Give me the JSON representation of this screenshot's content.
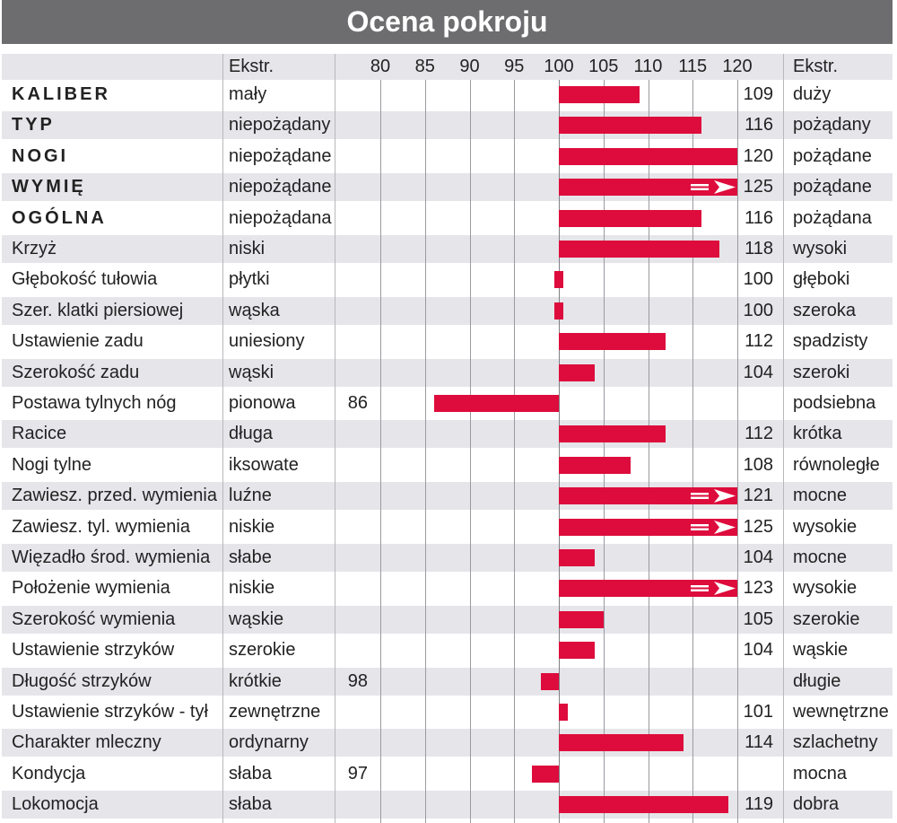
{
  "title": "Ocena pokroju",
  "header": {
    "low_label": "Ekstr.",
    "high_label": "Ekstr."
  },
  "chart_data": {
    "type": "bar",
    "axis": {
      "ticks": [
        "80",
        "85",
        "90",
        "95",
        "100",
        "105",
        "110",
        "115",
        "120"
      ],
      "min": 80,
      "max": 120,
      "base": 100
    },
    "rows": [
      {
        "trait": "KALIBER",
        "bold": true,
        "low": "mały",
        "high": "duży",
        "value": 109,
        "label": "109",
        "side": "right"
      },
      {
        "trait": "TYP",
        "bold": true,
        "low": "niepożądany",
        "high": "pożądany",
        "value": 116,
        "label": "116",
        "side": "right"
      },
      {
        "trait": "NOGI",
        "bold": true,
        "low": "niepożądane",
        "high": "pożądane",
        "value": 120,
        "label": "120",
        "side": "right"
      },
      {
        "trait": "WYMIĘ",
        "bold": true,
        "low": "niepożądane",
        "high": "pożądane",
        "value": 125,
        "label": "125",
        "side": "right",
        "overflow": true
      },
      {
        "trait": "OGÓLNA",
        "bold": true,
        "low": "niepożądana",
        "high": "pożądana",
        "value": 116,
        "label": "116",
        "side": "right"
      },
      {
        "trait": "Krzyż",
        "bold": false,
        "low": "niski",
        "high": "wysoki",
        "value": 118,
        "label": "118",
        "side": "right"
      },
      {
        "trait": "Głębokość tułowia",
        "bold": false,
        "low": "płytki",
        "high": "głęboki",
        "value": 100,
        "label": "100",
        "side": "right"
      },
      {
        "trait": "Szer. klatki piersiowej",
        "bold": false,
        "low": "wąska",
        "high": "szeroka",
        "value": 100,
        "label": "100",
        "side": "right"
      },
      {
        "trait": "Ustawienie zadu",
        "bold": false,
        "low": "uniesiony",
        "high": "spadzisty",
        "value": 112,
        "label": "112",
        "side": "right"
      },
      {
        "trait": "Szerokość zadu",
        "bold": false,
        "low": "wąski",
        "high": "szeroki",
        "value": 104,
        "label": "104",
        "side": "right"
      },
      {
        "trait": "Postawa tylnych nóg",
        "bold": false,
        "low": "pionowa",
        "high": "podsiebna",
        "value": 86,
        "label": "86",
        "side": "left"
      },
      {
        "trait": "Racice",
        "bold": false,
        "low": "długa",
        "high": "krótka",
        "value": 112,
        "label": "112",
        "side": "right"
      },
      {
        "trait": "Nogi tylne",
        "bold": false,
        "low": "iksowate",
        "high": "równoległe",
        "value": 108,
        "label": "108",
        "side": "right"
      },
      {
        "trait": "Zawiesz. przed. wymienia",
        "bold": false,
        "low": "luźne",
        "high": "mocne",
        "value": 121,
        "label": "121",
        "side": "right",
        "overflow": true
      },
      {
        "trait": "Zawiesz. tyl. wymienia",
        "bold": false,
        "low": "niskie",
        "high": "wysokie",
        "value": 125,
        "label": "125",
        "side": "right",
        "overflow": true
      },
      {
        "trait": "Więzadło środ. wymienia",
        "bold": false,
        "low": "słabe",
        "high": "mocne",
        "value": 104,
        "label": "104",
        "side": "right"
      },
      {
        "trait": "Położenie wymienia",
        "bold": false,
        "low": "niskie",
        "high": "wysokie",
        "value": 123,
        "label": "123",
        "side": "right",
        "overflow": true
      },
      {
        "trait": "Szerokość wymienia",
        "bold": false,
        "low": "wąskie",
        "high": "szerokie",
        "value": 105,
        "label": "105",
        "side": "right"
      },
      {
        "trait": "Ustawienie strzyków",
        "bold": false,
        "low": "szerokie",
        "high": "wąskie",
        "value": 104,
        "label": "104",
        "side": "right"
      },
      {
        "trait": "Długość strzyków",
        "bold": false,
        "low": "krótkie",
        "high": "długie",
        "value": 98,
        "label": "98",
        "side": "left"
      },
      {
        "trait": "Ustawienie strzyków - tył",
        "bold": false,
        "low": "zewnętrzne",
        "high": "wewnętrzne",
        "value": 101,
        "label": "101",
        "side": "right"
      },
      {
        "trait": "Charakter mleczny",
        "bold": false,
        "low": "ordynarny",
        "high": "szlachetny",
        "value": 114,
        "label": "114",
        "side": "right"
      },
      {
        "trait": "Kondycja",
        "bold": false,
        "low": "słaba",
        "high": "mocna",
        "value": 97,
        "label": "97",
        "side": "left"
      },
      {
        "trait": "Lokomocja",
        "bold": false,
        "low": "słaba",
        "high": "dobra",
        "value": 119,
        "label": "119",
        "side": "right"
      }
    ]
  },
  "colors": {
    "bar": "#dd0c3c",
    "title_bg": "#6d6d6f",
    "stripe": "#e6e5ea"
  }
}
